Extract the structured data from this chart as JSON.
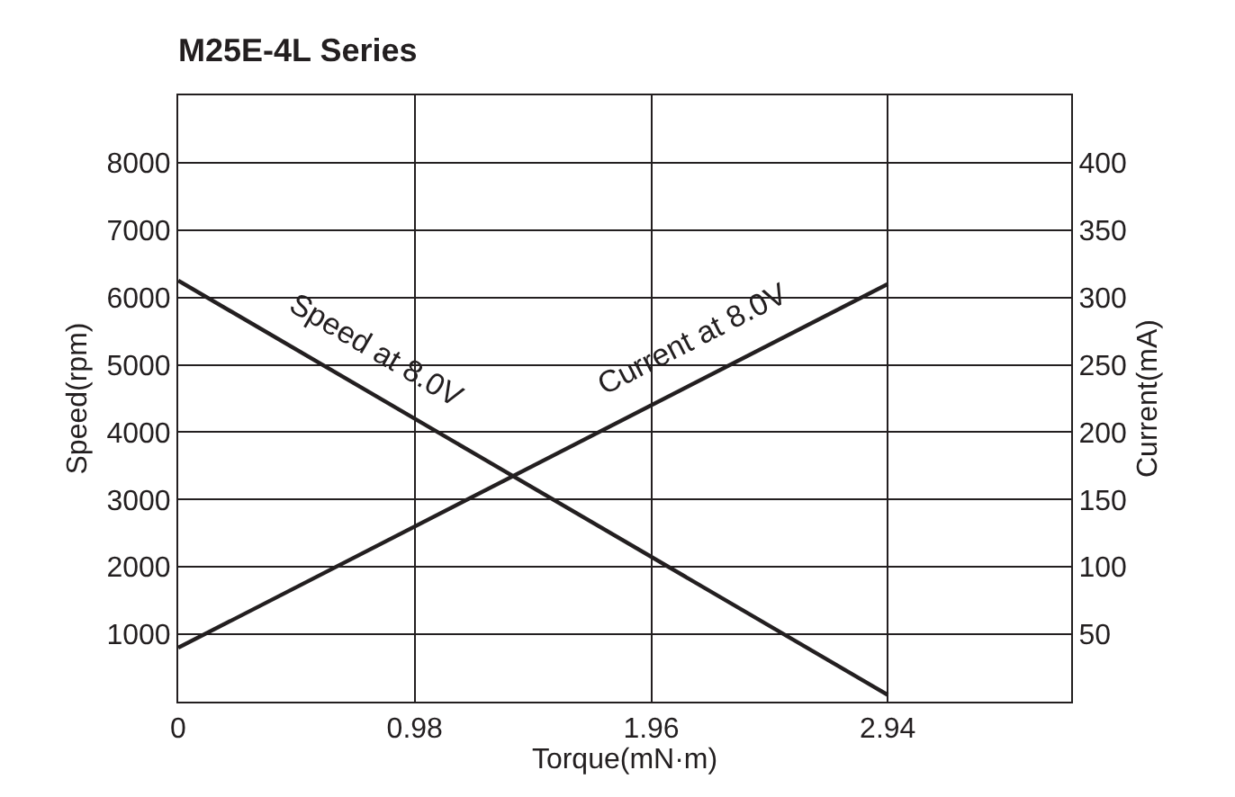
{
  "chart_data": {
    "type": "line",
    "title": "M25E-4L Series",
    "xlabel": "Torque(mN·m)",
    "ylabel": "Speed(rpm)",
    "y2label": "Current(mA)",
    "x": [
      0,
      2.94
    ],
    "series": [
      {
        "color": "#231f20",
        "values": [
          6250,
          100
        ]
      },
      {
        "color": "#231f20",
        "values": [
          40,
          310
        ],
        "axis": "y2"
      }
    ],
    "annotations": [
      "Speed at 8.0V",
      "Current at 8.0V"
    ],
    "xlim": [
      0,
      3.7
    ],
    "xticks": [
      0,
      0.98,
      1.96,
      2.94
    ],
    "ylim": [
      0,
      9000
    ],
    "yticks": [
      1000,
      2000,
      3000,
      4000,
      5000,
      6000,
      7000,
      8000
    ],
    "y2lim": [
      0,
      450
    ],
    "y2ticks": [
      50,
      100,
      150,
      200,
      250,
      300,
      350,
      400
    ],
    "grid": true,
    "marker": "none",
    "line_style": "solid"
  }
}
